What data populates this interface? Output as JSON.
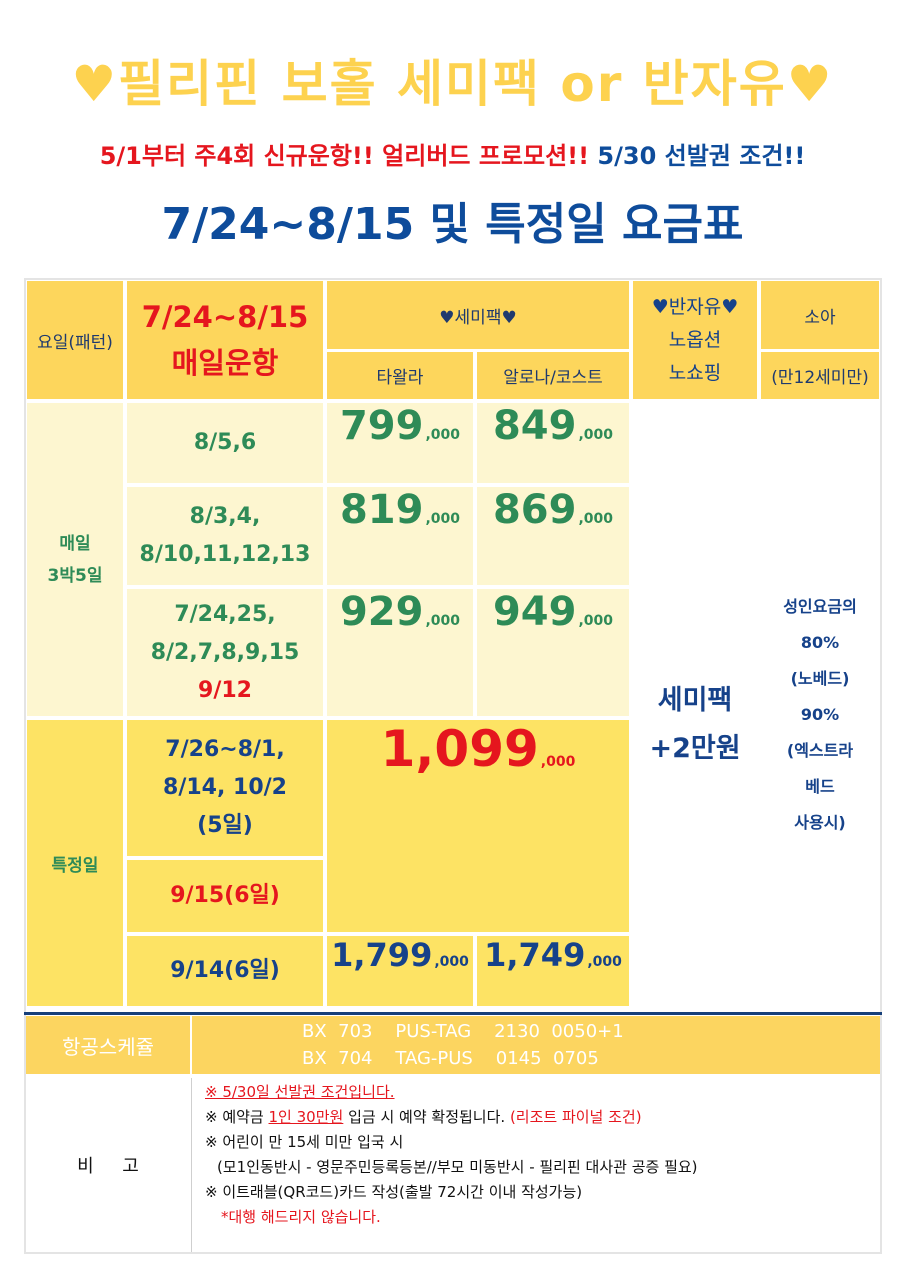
{
  "header": {
    "title": "♥필리핀 보홀 세미팩 or 반자유♥",
    "promo_part1": "5/1부터 주4회 신규운항!! 얼리버드 프로모션!!",
    "promo_part2": "5/30 선발권 조건!!",
    "subtitle": "7/24~8/15 및 특정일 요금표"
  },
  "table": {
    "col_day_pattern": "요일(패턴)",
    "period_line1": "7/24~8/15",
    "period_line2": "매일운항",
    "semipack_header": "♥세미팩♥",
    "col_tagala": "타왈라",
    "col_alona": "알로나/코스트",
    "halffree_line1": "♥반자유♥",
    "halffree_line2": "노옵션",
    "halffree_line3": "노쇼핑",
    "child_header": "소아",
    "child_sub": "(만12세미만)",
    "group_daily_line1": "매일",
    "group_daily_line2": "3박5일",
    "group_special": "특정일",
    "rows": [
      {
        "dates": [
          "8/5,6"
        ],
        "tagala": "799",
        "alona": "849"
      },
      {
        "dates": [
          "8/3,4,",
          "8/10,11,12,13"
        ],
        "tagala": "819",
        "alona": "869"
      },
      {
        "dates": [
          "7/24,25,",
          "8/2,7,8,9,15"
        ],
        "dates_red": "9/12",
        "tagala": "929",
        "alona": "949"
      }
    ],
    "special_dates_1": [
      "7/26~8/1,",
      "8/14, 10/2",
      "(5일)"
    ],
    "special_dates_2": "9/15(6일)",
    "special_price": "1,099",
    "special_dates_3": "9/14(6일)",
    "special3_tagala": "1,799",
    "special3_alona": "1,749",
    "price_suffix": ",000",
    "halffree_note_line1": "세미팩",
    "halffree_note_line2": "+2만원",
    "child_note": [
      "성인요금의",
      "80%",
      "(노베드)",
      "90%",
      "(엑스트라",
      "베드",
      "사용시)"
    ]
  },
  "flight": {
    "label": "항공스케쥴",
    "line1": "BX  703    PUS-TAG    2130  0050+1",
    "line2": "BX  704    TAG-PUS    0145  0705"
  },
  "remarks": {
    "label": "비     고",
    "note1": "※ 5/30일 선발권 조건입니다.",
    "note2_prefix": "※ 예약금 ",
    "note2_highlight": "1인 30만원",
    "note2_mid": " 입금 시 예약 확정됩니다. ",
    "note2_red": "(리조트 파이널 조건)",
    "note3": "※ 어린이 만 15세 미만 입국 시",
    "note4": "(모1인동반시 - 영문주민등록등본//부모 미동반시 - 필리핀 대사관 공증 필요)",
    "note5": "※ 이트래블(QR코드)카드 작성(출발 72시간 이내 작성가능)",
    "note6": "*대행 해드리지 않습니다."
  },
  "colors": {
    "title_yellow": "#fdd24f",
    "header_yellow": "#fdd65c",
    "light_yellow": "#fdf6d0",
    "special_yellow": "#fde364",
    "price_green": "#2e8b57",
    "accent_red": "#e5161e",
    "navy": "#16428a"
  }
}
